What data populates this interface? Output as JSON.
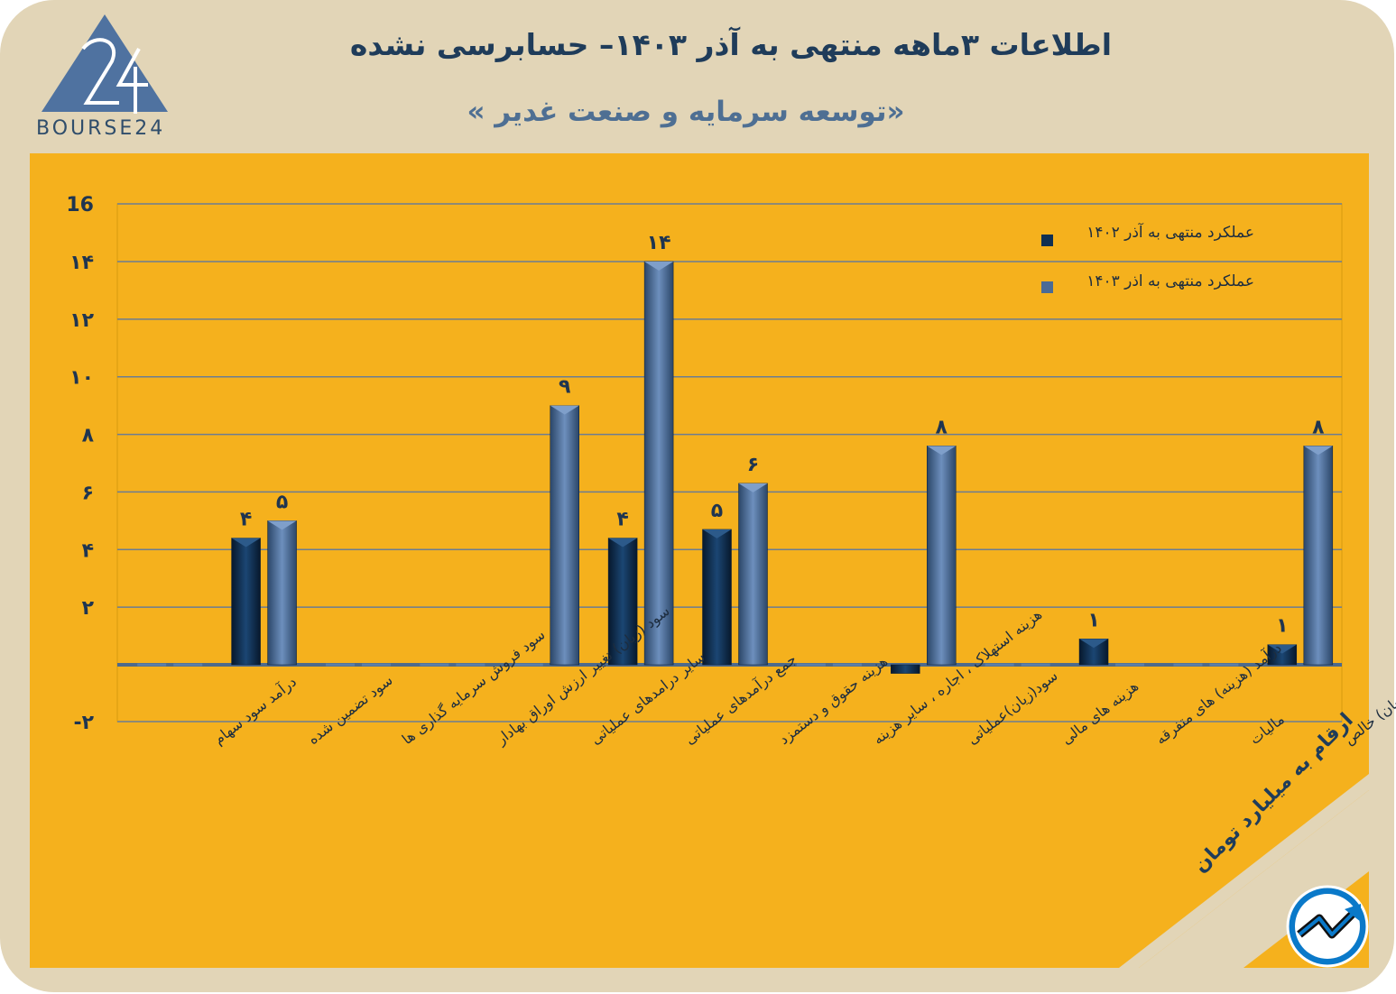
{
  "header": {
    "title": "اطلاعات ۳ماهه منتهی به آذر ۱۴۰۳– حسابرسی نشده",
    "subtitle": "«توسعه سرمایه و صنعت غدیر »",
    "logo_text": "BOURSE24",
    "logo_mark": "24"
  },
  "unit_note": "ارقام به میلیارد تومان",
  "colors": {
    "background": "#e2d5b7",
    "panel": "#f5b11d",
    "series_1402": "#0f2f52",
    "series_1403": "#4a6b96",
    "title": "#1f3c5a"
  },
  "icons": {
    "logo": "bourse24-triangle-logo",
    "badge": "trend-arrow-icon"
  },
  "chart_data": {
    "type": "bar",
    "ylim": [
      -2,
      16
    ],
    "yticks": [
      -2,
      2,
      4,
      6,
      8,
      10,
      12,
      14,
      16
    ],
    "ytick_labels": [
      "-۲",
      "۲",
      "۴",
      "۶",
      "۸",
      "۱۰",
      "۱۲",
      "۱۴",
      "16"
    ],
    "grid": true,
    "legend_position": "top-right",
    "categories": [
      "درآمد سود سهام",
      "سود تضمین شده",
      "سود فروش سرمایه گذاری ها",
      "سود (زیان) تغییر ارزش اوراق بهادار",
      "سایر درامدهای عملیاتی",
      "جمع درآمدهای عملیاتی",
      "هزینه حقوق و دستمزد",
      "هزینه استهلاک ، اجاره ، سایر هزینه",
      "سود(زیان)عملیاتی",
      "هزینه های مالی",
      "درآمد (هزینه) های متفرقه",
      "مالیات",
      "سود(زیان) خالص"
    ],
    "series": [
      {
        "name": "عملکرد منتهی به آذر ۱۴۰۲",
        "values": [
          0,
          4.4,
          0,
          0,
          0,
          4.4,
          4.7,
          0,
          -0.3,
          0,
          0.9,
          0,
          0.7
        ],
        "labels": [
          "",
          "۴",
          "",
          "",
          "",
          "۴",
          "۵",
          "",
          "",
          "",
          "۱",
          "",
          "۱"
        ]
      },
      {
        "name": "عملکرد منتهی به اذر ۱۴۰۳",
        "values": [
          0,
          5.0,
          0,
          0,
          9.0,
          14.0,
          6.3,
          0,
          7.6,
          0,
          0,
          0,
          7.6
        ],
        "labels": [
          "",
          "۵",
          "",
          "",
          "۹",
          "۱۴",
          "۶",
          "",
          "۸",
          "",
          "",
          "",
          "۸"
        ]
      }
    ]
  }
}
